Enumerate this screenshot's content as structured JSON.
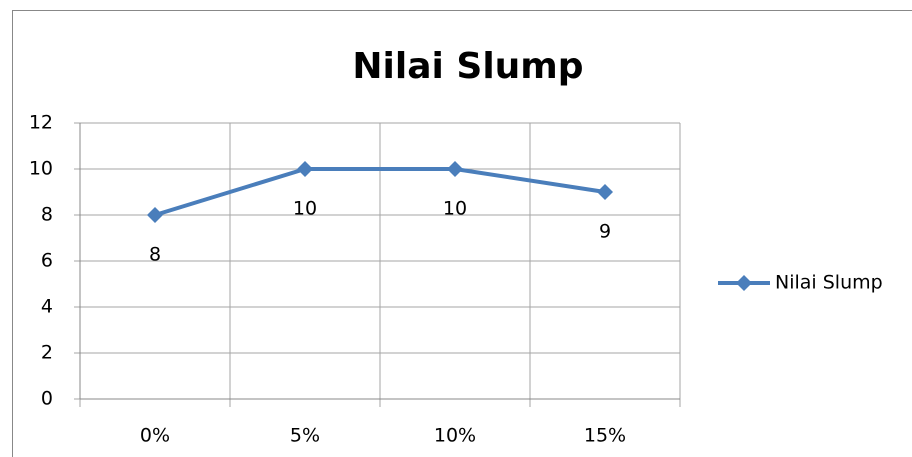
{
  "chart_data": {
    "type": "line",
    "title": "Nilai Slump",
    "categories": [
      "0%",
      "5%",
      "10%",
      "15%"
    ],
    "series": [
      {
        "name": "Nilai Slump",
        "color": "#4a7ebb",
        "values": [
          8,
          10,
          10,
          9
        ]
      }
    ],
    "ylim": [
      0,
      12
    ],
    "yticks": [
      0,
      2,
      4,
      6,
      8,
      10,
      12
    ],
    "grid": true,
    "legend": "right"
  }
}
